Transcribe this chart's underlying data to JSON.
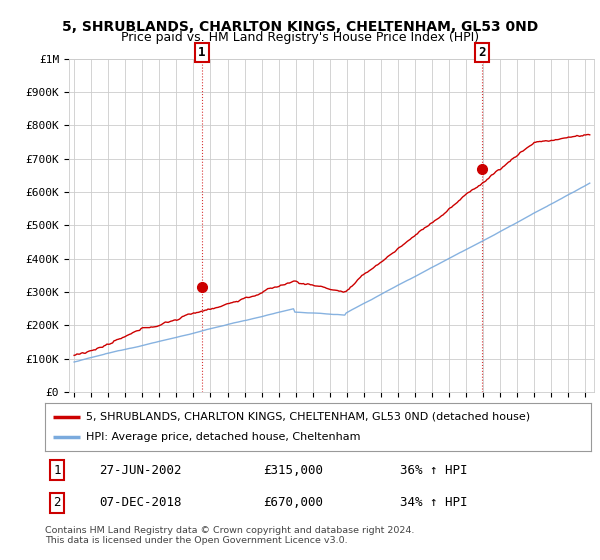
{
  "title1": "5, SHRUBLANDS, CHARLTON KINGS, CHELTENHAM, GL53 0ND",
  "title2": "Price paid vs. HM Land Registry's House Price Index (HPI)",
  "ylabel_ticks": [
    "£0",
    "£100K",
    "£200K",
    "£300K",
    "£400K",
    "£500K",
    "£600K",
    "£700K",
    "£800K",
    "£900K",
    "£1M"
  ],
  "ytick_values": [
    0,
    100000,
    200000,
    300000,
    400000,
    500000,
    600000,
    700000,
    800000,
    900000,
    1000000
  ],
  "ylim": [
    0,
    1000000
  ],
  "xlim_start": 1994.7,
  "xlim_end": 2025.5,
  "ann1_x": 2002.5,
  "ann1_y": 315000,
  "ann1_label": "1",
  "ann1_date": "27-JUN-2002",
  "ann1_price": "£315,000",
  "ann1_hpi": "36% ↑ HPI",
  "ann2_x": 2018.92,
  "ann2_y": 670000,
  "ann2_label": "2",
  "ann2_date": "07-DEC-2018",
  "ann2_price": "£670,000",
  "ann2_hpi": "34% ↑ HPI",
  "legend_line1": "5, SHRUBLANDS, CHARLTON KINGS, CHELTENHAM, GL53 0ND (detached house)",
  "legend_line2": "HPI: Average price, detached house, Cheltenham",
  "footer1": "Contains HM Land Registry data © Crown copyright and database right 2024.",
  "footer2": "This data is licensed under the Open Government Licence v3.0.",
  "red_color": "#cc0000",
  "blue_color": "#7aaadd",
  "bg_color": "#ffffff",
  "grid_color": "#cccccc"
}
